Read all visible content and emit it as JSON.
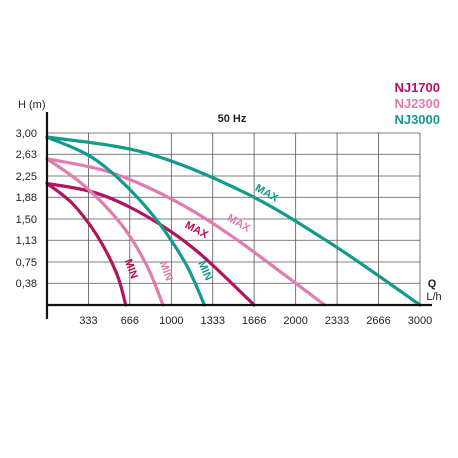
{
  "chart_data": {
    "type": "line",
    "title": "50 Hz",
    "ylabel": "H (m)",
    "xlabel": "Q",
    "xunit": "L/h",
    "x_ticks": [
      333,
      666,
      1000,
      1333,
      1666,
      2000,
      2333,
      2666,
      3000
    ],
    "y_ticks": [
      "3,00",
      "2,63",
      "2,25",
      "1,88",
      "1,50",
      "1,13",
      "0,75",
      "0,38"
    ],
    "y_tick_values": [
      3.0,
      2.63,
      2.25,
      1.88,
      1.5,
      1.13,
      0.75,
      0.38
    ],
    "xlim": [
      0,
      3000
    ],
    "ylim": [
      0,
      3.0
    ],
    "legend": [
      {
        "name": "NJ1700",
        "color": "#b0145f"
      },
      {
        "name": "NJ2300",
        "color": "#e27bb0"
      },
      {
        "name": "NJ3000",
        "color": "#129a8c"
      }
    ],
    "series": [
      {
        "name": "NJ1700",
        "mode": "MAX",
        "label": "MAX",
        "color": "#b0145f",
        "x": [
          0,
          400,
          800,
          1200,
          1666
        ],
        "y": [
          2.12,
          1.95,
          1.55,
          0.95,
          0.0
        ]
      },
      {
        "name": "NJ1700",
        "mode": "MIN",
        "label": "MIN",
        "color": "#b0145f",
        "x": [
          0,
          200,
          400,
          560,
          633
        ],
        "y": [
          2.12,
          1.78,
          1.22,
          0.55,
          0.0
        ]
      },
      {
        "name": "NJ2300",
        "mode": "MAX",
        "label": "MAX",
        "color": "#e27bb0",
        "x": [
          0,
          500,
          1000,
          1500,
          2233
        ],
        "y": [
          2.55,
          2.32,
          1.85,
          1.18,
          0.0
        ]
      },
      {
        "name": "NJ2300",
        "mode": "MIN",
        "label": "MIN",
        "color": "#e27bb0",
        "x": [
          0,
          300,
          600,
          800,
          933
        ],
        "y": [
          2.55,
          2.08,
          1.4,
          0.7,
          0.0
        ]
      },
      {
        "name": "NJ3000",
        "mode": "MAX",
        "label": "MAX",
        "color": "#129a8c",
        "x": [
          0,
          800,
          1600,
          2300,
          3000
        ],
        "y": [
          2.93,
          2.65,
          1.95,
          1.05,
          0.0
        ]
      },
      {
        "name": "NJ3000",
        "mode": "MIN",
        "label": "MIN",
        "color": "#129a8c",
        "x": [
          0,
          400,
          800,
          1100,
          1266
        ],
        "y": [
          2.93,
          2.52,
          1.7,
          0.78,
          0.0
        ]
      }
    ],
    "grid": true
  }
}
